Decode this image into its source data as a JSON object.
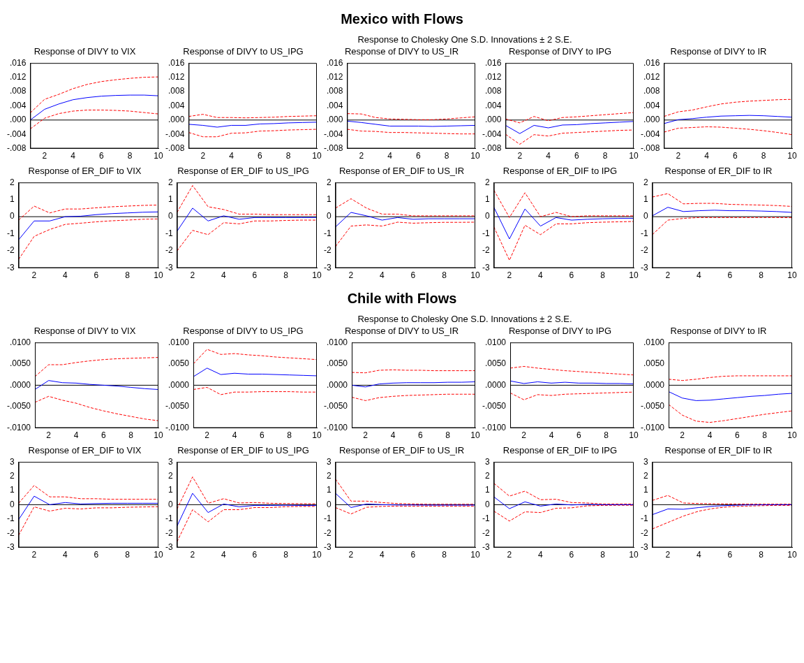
{
  "chart_data": [
    {
      "type": "line",
      "title": "Response of DIVY to VIX",
      "annotations": [
        "Mexico with Flows",
        "Response to Cholesky One S.D. Innovations ± 2 S.E."
      ],
      "x": [
        1,
        2,
        3,
        4,
        5,
        6,
        7,
        8,
        9,
        10
      ],
      "xlim": [
        1,
        10
      ],
      "xticks": [
        2,
        4,
        6,
        8,
        10
      ],
      "ylim": [
        -0.008,
        0.016
      ],
      "yticks": [
        {
          "value": -0.008,
          "label": "-.008"
        },
        {
          "value": -0.004,
          "label": "-.004"
        },
        {
          "value": 0,
          "label": ".000"
        },
        {
          "value": 0.004,
          "label": ".004"
        },
        {
          "value": 0.008,
          "label": ".008"
        },
        {
          "value": 0.012,
          "label": ".012"
        },
        {
          "value": 0.016,
          "label": ".016"
        }
      ],
      "ref_lines": [
        {
          "axis": "y",
          "value": 0,
          "color": "#000000"
        }
      ],
      "series": [
        {
          "color": "#0000ff",
          "line_style": "solid",
          "values": [
            0,
            0.003,
            0.0045,
            0.0057,
            0.0063,
            0.0067,
            0.0069,
            0.007,
            0.007,
            0.0068
          ]
        },
        {
          "color": "#ff0000",
          "line_style": "dashed",
          "values": [
            0.002,
            0.0058,
            0.0072,
            0.0088,
            0.01,
            0.0108,
            0.0113,
            0.0117,
            0.012,
            0.0121
          ]
        },
        {
          "color": "#ff0000",
          "line_style": "dashed",
          "values": [
            -0.0025,
            0.0005,
            0.0018,
            0.0025,
            0.0028,
            0.0028,
            0.0027,
            0.0025,
            0.0021,
            0.0017
          ]
        }
      ]
    },
    {
      "type": "line",
      "title": "Response of DIVY to US_IPG",
      "x": [
        1,
        2,
        3,
        4,
        5,
        6,
        7,
        8,
        9,
        10
      ],
      "xlim": [
        1,
        10
      ],
      "xticks": [
        2,
        4,
        6,
        8,
        10
      ],
      "ylim": [
        -0.008,
        0.016
      ],
      "yticks": [
        {
          "value": -0.008,
          "label": "-.008"
        },
        {
          "value": -0.004,
          "label": "-.004"
        },
        {
          "value": 0,
          "label": ".000"
        },
        {
          "value": 0.004,
          "label": ".004"
        },
        {
          "value": 0.008,
          "label": ".008"
        },
        {
          "value": 0.012,
          "label": ".012"
        },
        {
          "value": 0.016,
          "label": ".016"
        }
      ],
      "ref_lines": [
        {
          "axis": "y",
          "value": 0,
          "color": "#000000"
        }
      ],
      "series": [
        {
          "color": "#0000ff",
          "line_style": "solid",
          "values": [
            -0.0012,
            -0.0015,
            -0.002,
            -0.0015,
            -0.0015,
            -0.0011,
            -0.001,
            -0.0008,
            -0.0007,
            -0.0006
          ]
        },
        {
          "color": "#ff0000",
          "line_style": "dashed",
          "values": [
            0.001,
            0.0016,
            0.0007,
            0.0007,
            0.0006,
            0.0007,
            0.0008,
            0.001,
            0.0011,
            0.0012
          ]
        },
        {
          "color": "#ff0000",
          "line_style": "dashed",
          "values": [
            -0.0035,
            -0.0047,
            -0.0047,
            -0.0037,
            -0.0036,
            -0.0031,
            -0.003,
            -0.0028,
            -0.0027,
            -0.0026
          ]
        }
      ]
    },
    {
      "type": "line",
      "title": "Response of DIVY to US_IR",
      "x": [
        1,
        2,
        3,
        4,
        5,
        6,
        7,
        8,
        9,
        10
      ],
      "xlim": [
        1,
        10
      ],
      "xticks": [
        2,
        4,
        6,
        8,
        10
      ],
      "ylim": [
        -0.008,
        0.016
      ],
      "yticks": [
        {
          "value": -0.008,
          "label": "-.008"
        },
        {
          "value": -0.004,
          "label": "-.004"
        },
        {
          "value": 0,
          "label": ".000"
        },
        {
          "value": 0.004,
          "label": ".004"
        },
        {
          "value": 0.008,
          "label": ".008"
        },
        {
          "value": 0.012,
          "label": ".012"
        },
        {
          "value": 0.016,
          "label": ".016"
        }
      ],
      "ref_lines": [
        {
          "axis": "y",
          "value": 0,
          "color": "#000000"
        }
      ],
      "series": [
        {
          "color": "#0000ff",
          "line_style": "solid",
          "values": [
            -0.0003,
            -0.0007,
            -0.0012,
            -0.0017,
            -0.0017,
            -0.0017,
            -0.0018,
            -0.0017,
            -0.0016,
            -0.0015
          ]
        },
        {
          "color": "#ff0000",
          "line_style": "dashed",
          "values": [
            0.0018,
            0.0017,
            0.0007,
            0.0003,
            0.0002,
            0.0001,
            0.0001,
            0.0003,
            0.0006,
            0.0009
          ]
        },
        {
          "color": "#ff0000",
          "line_style": "dashed",
          "values": [
            -0.0026,
            -0.0031,
            -0.0032,
            -0.0035,
            -0.0035,
            -0.0036,
            -0.0037,
            -0.0038,
            -0.0039,
            -0.0039
          ]
        }
      ]
    },
    {
      "type": "line",
      "title": "Response of DIVY to IPG",
      "x": [
        1,
        2,
        3,
        4,
        5,
        6,
        7,
        8,
        9,
        10
      ],
      "xlim": [
        1,
        10
      ],
      "xticks": [
        2,
        4,
        6,
        8,
        10
      ],
      "ylim": [
        -0.008,
        0.016
      ],
      "yticks": [
        {
          "value": -0.008,
          "label": "-.008"
        },
        {
          "value": -0.004,
          "label": "-.004"
        },
        {
          "value": 0,
          "label": ".000"
        },
        {
          "value": 0.004,
          "label": ".004"
        },
        {
          "value": 0.008,
          "label": ".008"
        },
        {
          "value": 0.012,
          "label": ".012"
        },
        {
          "value": 0.016,
          "label": ".016"
        }
      ],
      "ref_lines": [
        {
          "axis": "y",
          "value": 0,
          "color": "#000000"
        }
      ],
      "series": [
        {
          "color": "#0000ff",
          "line_style": "solid",
          "values": [
            -0.0015,
            -0.0038,
            -0.0015,
            -0.0022,
            -0.0014,
            -0.0013,
            -0.001,
            -0.0008,
            -0.0006,
            -0.0004
          ]
        },
        {
          "color": "#ff0000",
          "line_style": "dashed",
          "values": [
            0.0003,
            -0.0008,
            0.001,
            -0.0002,
            0.0007,
            0.0009,
            0.0012,
            0.0015,
            0.0018,
            0.0021
          ]
        },
        {
          "color": "#ff0000",
          "line_style": "dashed",
          "values": [
            -0.004,
            -0.0068,
            -0.0041,
            -0.0045,
            -0.0037,
            -0.0035,
            -0.0033,
            -0.0031,
            -0.0029,
            -0.0028
          ]
        }
      ]
    },
    {
      "type": "line",
      "title": "Response of DIVY to IR",
      "x": [
        1,
        2,
        3,
        4,
        5,
        6,
        7,
        8,
        9,
        10
      ],
      "xlim": [
        1,
        10
      ],
      "xticks": [
        2,
        4,
        6,
        8,
        10
      ],
      "ylim": [
        -0.008,
        0.016
      ],
      "yticks": [
        {
          "value": -0.008,
          "label": "-.008"
        },
        {
          "value": -0.004,
          "label": "-.004"
        },
        {
          "value": 0,
          "label": ".000"
        },
        {
          "value": 0.004,
          "label": ".004"
        },
        {
          "value": 0.008,
          "label": ".008"
        },
        {
          "value": 0.012,
          "label": ".012"
        },
        {
          "value": 0.016,
          "label": ".016"
        }
      ],
      "ref_lines": [
        {
          "axis": "y",
          "value": 0,
          "color": "#000000"
        }
      ],
      "series": [
        {
          "color": "#0000ff",
          "line_style": "solid",
          "values": [
            -0.001,
            0.0001,
            0.0004,
            0.0008,
            0.0011,
            0.0012,
            0.0013,
            0.0012,
            0.001,
            0.0008
          ]
        },
        {
          "color": "#ff0000",
          "line_style": "dashed",
          "values": [
            0.001,
            0.0023,
            0.0028,
            0.0037,
            0.0045,
            0.005,
            0.0053,
            0.0055,
            0.0057,
            0.0058
          ]
        },
        {
          "color": "#ff0000",
          "line_style": "dashed",
          "values": [
            -0.0034,
            -0.0023,
            -0.0021,
            -0.0019,
            -0.002,
            -0.0023,
            -0.0026,
            -0.003,
            -0.0035,
            -0.0041
          ]
        }
      ]
    },
    {
      "type": "line",
      "title": "Response of ER_DIF to VIX",
      "x": [
        1,
        2,
        3,
        4,
        5,
        6,
        7,
        8,
        9,
        10
      ],
      "xlim": [
        1,
        10
      ],
      "xticks": [
        2,
        4,
        6,
        8,
        10
      ],
      "ylim": [
        -3,
        2
      ],
      "yticks": [
        -3,
        -2,
        -1,
        0,
        1,
        2
      ],
      "ref_lines": [
        {
          "axis": "y",
          "value": 0,
          "color": "#000000"
        }
      ],
      "series": [
        {
          "color": "#0000ff",
          "line_style": "solid",
          "values": [
            -1.35,
            -0.25,
            -0.25,
            0,
            0.03,
            0.12,
            0.18,
            0.22,
            0.26,
            0.28
          ]
        },
        {
          "color": "#ff0000",
          "line_style": "dashed",
          "values": [
            -0.2,
            0.62,
            0.22,
            0.45,
            0.45,
            0.52,
            0.58,
            0.62,
            0.66,
            0.68
          ]
        },
        {
          "color": "#ff0000",
          "line_style": "dashed",
          "values": [
            -2.5,
            -1.15,
            -0.75,
            -0.45,
            -0.38,
            -0.3,
            -0.24,
            -0.2,
            -0.15,
            -0.13
          ]
        }
      ]
    },
    {
      "type": "line",
      "title": "Response of ER_DIF to US_IPG",
      "x": [
        1,
        2,
        3,
        4,
        5,
        6,
        7,
        8,
        9,
        10
      ],
      "xlim": [
        1,
        10
      ],
      "xticks": [
        2,
        4,
        6,
        8,
        10
      ],
      "ylim": [
        -3,
        2
      ],
      "yticks": [
        -3,
        -2,
        -1,
        0,
        1,
        2
      ],
      "ref_lines": [
        {
          "axis": "y",
          "value": 0,
          "color": "#000000"
        }
      ],
      "series": [
        {
          "color": "#0000ff",
          "line_style": "solid",
          "values": [
            -0.85,
            0.5,
            -0.25,
            0.05,
            -0.15,
            -0.05,
            -0.05,
            -0.05,
            -0.05,
            -0.05
          ]
        },
        {
          "color": "#ff0000",
          "line_style": "dashed",
          "values": [
            0.25,
            1.82,
            0.58,
            0.42,
            0.15,
            0.15,
            0.12,
            0.12,
            0.12,
            0.12
          ]
        },
        {
          "color": "#ff0000",
          "line_style": "dashed",
          "values": [
            -2,
            -0.8,
            -1.05,
            -0.35,
            -0.42,
            -0.25,
            -0.25,
            -0.22,
            -0.2,
            -0.2
          ]
        }
      ]
    },
    {
      "type": "line",
      "title": "Response of ER_DIF to US_IR",
      "x": [
        1,
        2,
        3,
        4,
        5,
        6,
        7,
        8,
        9,
        10
      ],
      "xlim": [
        1,
        10
      ],
      "xticks": [
        2,
        4,
        6,
        8,
        10
      ],
      "ylim": [
        -3,
        2
      ],
      "yticks": [
        -3,
        -2,
        -1,
        0,
        1,
        2
      ],
      "ref_lines": [
        {
          "axis": "y",
          "value": 0,
          "color": "#000000"
        }
      ],
      "series": [
        {
          "color": "#0000ff",
          "line_style": "solid",
          "values": [
            -0.6,
            0.25,
            0.05,
            -0.2,
            -0.05,
            -0.15,
            -0.12,
            -0.12,
            -0.12,
            -0.12
          ]
        },
        {
          "color": "#ff0000",
          "line_style": "dashed",
          "values": [
            0.5,
            1.05,
            0.5,
            0.15,
            0.15,
            0.05,
            0.05,
            0.05,
            0.05,
            0.05
          ]
        },
        {
          "color": "#ff0000",
          "line_style": "dashed",
          "values": [
            -1.75,
            -0.55,
            -0.48,
            -0.55,
            -0.32,
            -0.38,
            -0.35,
            -0.33,
            -0.33,
            -0.32
          ]
        }
      ]
    },
    {
      "type": "line",
      "title": "Response of ER_DIF to IPG",
      "x": [
        1,
        2,
        3,
        4,
        5,
        6,
        7,
        8,
        9,
        10
      ],
      "xlim": [
        1,
        10
      ],
      "xticks": [
        2,
        4,
        6,
        8,
        10
      ],
      "ylim": [
        -3,
        2
      ],
      "yticks": [
        -3,
        -2,
        -1,
        0,
        1,
        2
      ],
      "ref_lines": [
        {
          "axis": "y",
          "value": 0,
          "color": "#000000"
        }
      ],
      "series": [
        {
          "color": "#0000ff",
          "line_style": "solid",
          "values": [
            0.55,
            -1.3,
            0.45,
            -0.55,
            -0.05,
            -0.2,
            -0.15,
            -0.12,
            -0.1,
            -0.1
          ]
        },
        {
          "color": "#ff0000",
          "line_style": "dashed",
          "values": [
            1.55,
            -0.05,
            1.4,
            0,
            0.25,
            0,
            0.05,
            0.05,
            0.05,
            0.05
          ]
        },
        {
          "color": "#ff0000",
          "line_style": "dashed",
          "values": [
            -0.6,
            -2.55,
            -0.5,
            -1.05,
            -0.42,
            -0.42,
            -0.35,
            -0.32,
            -0.3,
            -0.28
          ]
        }
      ]
    },
    {
      "type": "line",
      "title": "Response of ER_DIF to IR",
      "x": [
        1,
        2,
        3,
        4,
        5,
        6,
        7,
        8,
        9,
        10
      ],
      "xlim": [
        1,
        10
      ],
      "xticks": [
        2,
        4,
        6,
        8,
        10
      ],
      "ylim": [
        -3,
        2
      ],
      "yticks": [
        -3,
        -2,
        -1,
        0,
        1,
        2
      ],
      "ref_lines": [
        {
          "axis": "y",
          "value": 0,
          "color": "#000000"
        }
      ],
      "series": [
        {
          "color": "#0000ff",
          "line_style": "solid",
          "values": [
            0.05,
            0.55,
            0.3,
            0.35,
            0.38,
            0.35,
            0.35,
            0.33,
            0.3,
            0.25
          ]
        },
        {
          "color": "#ff0000",
          "line_style": "dashed",
          "values": [
            1.15,
            1.35,
            0.75,
            0.78,
            0.78,
            0.72,
            0.7,
            0.68,
            0.65,
            0.6
          ]
        },
        {
          "color": "#ff0000",
          "line_style": "dashed",
          "values": [
            -1.05,
            -0.2,
            -0.1,
            -0.05,
            -0.05,
            -0.05,
            -0.05,
            -0.05,
            -0.05,
            -0.06
          ]
        }
      ]
    },
    {
      "type": "line",
      "title": "Response of DIVY to VIX",
      "annotations": [
        "Chile with Flows",
        "Response to Cholesky One S.D. Innovations ± 2 S.E."
      ],
      "x": [
        1,
        2,
        3,
        4,
        5,
        6,
        7,
        8,
        9,
        10
      ],
      "xlim": [
        1,
        10
      ],
      "xticks": [
        2,
        4,
        6,
        8,
        10
      ],
      "ylim": [
        -0.01,
        0.01
      ],
      "yticks": [
        {
          "value": -0.01,
          "label": "-.0100"
        },
        {
          "value": -0.005,
          "label": "-.0050"
        },
        {
          "value": 0,
          "label": ".0000"
        },
        {
          "value": 0.005,
          "label": ".0050"
        },
        {
          "value": 0.01,
          "label": ".0100"
        }
      ],
      "ref_lines": [
        {
          "axis": "y",
          "value": 0,
          "color": "#000000"
        }
      ],
      "series": [
        {
          "color": "#0000ff",
          "line_style": "solid",
          "values": [
            -0.001,
            0.0011,
            0.0006,
            0.0005,
            0.0002,
            0,
            -0.0002,
            -0.0005,
            -0.0008,
            -0.001
          ]
        },
        {
          "color": "#ff0000",
          "line_style": "dashed",
          "values": [
            0.002,
            0.0048,
            0.0048,
            0.0053,
            0.0057,
            0.006,
            0.0062,
            0.0063,
            0.0064,
            0.0065
          ]
        },
        {
          "color": "#ff0000",
          "line_style": "dashed",
          "values": [
            -0.004,
            -0.0026,
            -0.0035,
            -0.0042,
            -0.0052,
            -0.006,
            -0.0067,
            -0.0073,
            -0.0079,
            -0.0083
          ]
        }
      ]
    },
    {
      "type": "line",
      "title": "Response of DIVY to US_IPG",
      "x": [
        1,
        2,
        3,
        4,
        5,
        6,
        7,
        8,
        9,
        10
      ],
      "xlim": [
        1,
        10
      ],
      "xticks": [
        2,
        4,
        6,
        8,
        10
      ],
      "ylim": [
        -0.01,
        0.01
      ],
      "yticks": [
        {
          "value": -0.01,
          "label": "-.0100"
        },
        {
          "value": -0.005,
          "label": "-.0050"
        },
        {
          "value": 0,
          "label": ".0000"
        },
        {
          "value": 0.005,
          "label": ".0050"
        },
        {
          "value": 0.01,
          "label": ".0100"
        }
      ],
      "ref_lines": [
        {
          "axis": "y",
          "value": 0,
          "color": "#000000"
        }
      ],
      "series": [
        {
          "color": "#0000ff",
          "line_style": "solid",
          "values": [
            0.002,
            0.004,
            0.0025,
            0.0028,
            0.0026,
            0.0026,
            0.0025,
            0.0024,
            0.0023,
            0.0022
          ]
        },
        {
          "color": "#ff0000",
          "line_style": "dashed",
          "values": [
            0.005,
            0.0084,
            0.0072,
            0.0074,
            0.0071,
            0.0069,
            0.0066,
            0.0064,
            0.0062,
            0.006
          ]
        },
        {
          "color": "#ff0000",
          "line_style": "dashed",
          "values": [
            -0.001,
            -0.0005,
            -0.0022,
            -0.0016,
            -0.0016,
            -0.0015,
            -0.0015,
            -0.0015,
            -0.0016,
            -0.0016
          ]
        }
      ]
    },
    {
      "type": "line",
      "title": "Response of DIVY to US_IR",
      "x": [
        1,
        2,
        3,
        4,
        5,
        6,
        7,
        8,
        9,
        10
      ],
      "xlim": [
        1,
        10
      ],
      "xticks": [
        2,
        4,
        6,
        8,
        10
      ],
      "ylim": [
        -0.01,
        0.01
      ],
      "yticks": [
        {
          "value": -0.01,
          "label": "-.0100"
        },
        {
          "value": -0.005,
          "label": "-.0050"
        },
        {
          "value": 0,
          "label": ".0000"
        },
        {
          "value": 0.005,
          "label": ".0050"
        },
        {
          "value": 0.01,
          "label": ".0100"
        }
      ],
      "ref_lines": [
        {
          "axis": "y",
          "value": 0,
          "color": "#000000"
        }
      ],
      "series": [
        {
          "color": "#0000ff",
          "line_style": "solid",
          "values": [
            0,
            -0.0004,
            0.0003,
            0.0005,
            0.0006,
            0.0006,
            0.0006,
            0.0007,
            0.0007,
            0.0008
          ]
        },
        {
          "color": "#ff0000",
          "line_style": "dashed",
          "values": [
            0.003,
            0.0029,
            0.0035,
            0.0036,
            0.0035,
            0.0035,
            0.0034,
            0.0034,
            0.0034,
            0.0034
          ]
        },
        {
          "color": "#ff0000",
          "line_style": "dashed",
          "values": [
            -0.0028,
            -0.0036,
            -0.0029,
            -0.0026,
            -0.0024,
            -0.0023,
            -0.0022,
            -0.0021,
            -0.0021,
            -0.0021
          ]
        }
      ]
    },
    {
      "type": "line",
      "title": "Response of DIVY to IPG",
      "x": [
        1,
        2,
        3,
        4,
        5,
        6,
        7,
        8,
        9,
        10
      ],
      "xlim": [
        1,
        10
      ],
      "xticks": [
        2,
        4,
        6,
        8,
        10
      ],
      "ylim": [
        -0.01,
        0.01
      ],
      "yticks": [
        {
          "value": -0.01,
          "label": "-.0100"
        },
        {
          "value": -0.005,
          "label": "-.0050"
        },
        {
          "value": 0,
          "label": ".0000"
        },
        {
          "value": 0.005,
          "label": ".0050"
        },
        {
          "value": 0.01,
          "label": ".0100"
        }
      ],
      "ref_lines": [
        {
          "axis": "y",
          "value": 0,
          "color": "#000000"
        }
      ],
      "series": [
        {
          "color": "#0000ff",
          "line_style": "solid",
          "values": [
            0.001,
            0.0004,
            0.0008,
            0.0005,
            0.0007,
            0.0005,
            0.0005,
            0.0004,
            0.0004,
            0.0003
          ]
        },
        {
          "color": "#ff0000",
          "line_style": "dashed",
          "values": [
            0.004,
            0.0044,
            0.004,
            0.0037,
            0.0034,
            0.0032,
            0.003,
            0.0028,
            0.0026,
            0.0024
          ]
        },
        {
          "color": "#ff0000",
          "line_style": "dashed",
          "values": [
            -0.0018,
            -0.0034,
            -0.0022,
            -0.0024,
            -0.0021,
            -0.002,
            -0.0019,
            -0.0018,
            -0.0017,
            -0.0016
          ]
        }
      ]
    },
    {
      "type": "line",
      "title": "Response of DIVY to IR",
      "x": [
        1,
        2,
        3,
        4,
        5,
        6,
        7,
        8,
        9,
        10
      ],
      "xlim": [
        1,
        10
      ],
      "xticks": [
        2,
        4,
        6,
        8,
        10
      ],
      "ylim": [
        -0.01,
        0.01
      ],
      "yticks": [
        {
          "value": -0.01,
          "label": "-.0100"
        },
        {
          "value": -0.005,
          "label": "-.0050"
        },
        {
          "value": 0,
          "label": ".0000"
        },
        {
          "value": 0.005,
          "label": ".0050"
        },
        {
          "value": 0.01,
          "label": ".0100"
        }
      ],
      "ref_lines": [
        {
          "axis": "y",
          "value": 0,
          "color": "#000000"
        }
      ],
      "series": [
        {
          "color": "#0000ff",
          "line_style": "solid",
          "values": [
            -0.0015,
            -0.003,
            -0.0036,
            -0.0035,
            -0.0032,
            -0.0029,
            -0.0026,
            -0.0024,
            -0.0021,
            -0.0019
          ]
        },
        {
          "color": "#ff0000",
          "line_style": "dashed",
          "values": [
            0.0014,
            0.0011,
            0.0014,
            0.0018,
            0.0021,
            0.0022,
            0.0022,
            0.0022,
            0.0022,
            0.0022
          ]
        },
        {
          "color": "#ff0000",
          "line_style": "dashed",
          "values": [
            -0.0045,
            -0.007,
            -0.0084,
            -0.0087,
            -0.0083,
            -0.0078,
            -0.0073,
            -0.0068,
            -0.0064,
            -0.006
          ]
        }
      ]
    },
    {
      "type": "line",
      "title": "Response of ER_DIF to VIX",
      "x": [
        1,
        2,
        3,
        4,
        5,
        6,
        7,
        8,
        9,
        10
      ],
      "xlim": [
        1,
        10
      ],
      "xticks": [
        2,
        4,
        6,
        8,
        10
      ],
      "ylim": [
        -3,
        3
      ],
      "yticks": [
        -3,
        -2,
        -1,
        0,
        1,
        2,
        3
      ],
      "ref_lines": [
        {
          "axis": "y",
          "value": 0,
          "color": "#000000"
        }
      ],
      "series": [
        {
          "color": "#0000ff",
          "line_style": "solid",
          "values": [
            -1.05,
            0.6,
            0,
            0.15,
            0.05,
            0.08,
            0.1,
            0.1,
            0.1,
            0.1
          ]
        },
        {
          "color": "#ff0000",
          "line_style": "dashed",
          "values": [
            0.1,
            1.35,
            0.55,
            0.55,
            0.42,
            0.42,
            0.38,
            0.38,
            0.38,
            0.38
          ]
        },
        {
          "color": "#ff0000",
          "line_style": "dashed",
          "values": [
            -2.15,
            -0.15,
            -0.45,
            -0.25,
            -0.3,
            -0.22,
            -0.22,
            -0.18,
            -0.16,
            -0.14
          ]
        }
      ]
    },
    {
      "type": "line",
      "title": "Response of ER_DIF to US_IPG",
      "x": [
        1,
        2,
        3,
        4,
        5,
        6,
        7,
        8,
        9,
        10
      ],
      "xlim": [
        1,
        10
      ],
      "xticks": [
        2,
        4,
        6,
        8,
        10
      ],
      "ylim": [
        -3,
        3
      ],
      "yticks": [
        -3,
        -2,
        -1,
        0,
        1,
        2,
        3
      ],
      "ref_lines": [
        {
          "axis": "y",
          "value": 0,
          "color": "#000000"
        }
      ],
      "series": [
        {
          "color": "#0000ff",
          "line_style": "solid",
          "values": [
            -1.5,
            0.8,
            -0.55,
            0.05,
            -0.15,
            -0.05,
            -0.05,
            -0.04,
            -0.05,
            -0.05
          ]
        },
        {
          "color": "#ff0000",
          "line_style": "dashed",
          "values": [
            -0.3,
            1.95,
            0.1,
            0.42,
            0.12,
            0.15,
            0.1,
            0.08,
            0.07,
            0.06
          ]
        },
        {
          "color": "#ff0000",
          "line_style": "dashed",
          "values": [
            -2.6,
            -0.35,
            -1.2,
            -0.35,
            -0.35,
            -0.2,
            -0.2,
            -0.14,
            -0.12,
            -0.12
          ]
        }
      ]
    },
    {
      "type": "line",
      "title": "Response of ER_DIF to US_IR",
      "x": [
        1,
        2,
        3,
        4,
        5,
        6,
        7,
        8,
        9,
        10
      ],
      "xlim": [
        1,
        10
      ],
      "xticks": [
        2,
        4,
        6,
        8,
        10
      ],
      "ylim": [
        -3,
        3
      ],
      "yticks": [
        -3,
        -2,
        -1,
        0,
        1,
        2,
        3
      ],
      "ref_lines": [
        {
          "axis": "y",
          "value": 0,
          "color": "#000000"
        }
      ],
      "series": [
        {
          "color": "#0000ff",
          "line_style": "solid",
          "values": [
            0.8,
            -0.2,
            0.05,
            0,
            -0.02,
            -0.02,
            -0.03,
            -0.03,
            -0.03,
            -0.03
          ]
        },
        {
          "color": "#ff0000",
          "line_style": "dashed",
          "values": [
            1.8,
            0.25,
            0.25,
            0.15,
            0.08,
            0.05,
            0.03,
            0.03,
            0.03,
            0.03
          ]
        },
        {
          "color": "#ff0000",
          "line_style": "dashed",
          "values": [
            -0.2,
            -0.65,
            -0.18,
            -0.12,
            -0.1,
            -0.1,
            -0.1,
            -0.1,
            -0.1,
            -0.1
          ]
        }
      ]
    },
    {
      "type": "line",
      "title": "Response of ER_DIF to IPG",
      "x": [
        1,
        2,
        3,
        4,
        5,
        6,
        7,
        8,
        9,
        10
      ],
      "xlim": [
        1,
        10
      ],
      "xticks": [
        2,
        4,
        6,
        8,
        10
      ],
      "ylim": [
        -3,
        3
      ],
      "yticks": [
        -3,
        -2,
        -1,
        0,
        1,
        2,
        3
      ],
      "ref_lines": [
        {
          "axis": "y",
          "value": 0,
          "color": "#000000"
        }
      ],
      "series": [
        {
          "color": "#0000ff",
          "line_style": "solid",
          "values": [
            0.55,
            -0.28,
            0.2,
            -0.1,
            0.05,
            -0.02,
            0.02,
            0,
            0,
            0
          ]
        },
        {
          "color": "#ff0000",
          "line_style": "dashed",
          "values": [
            1.5,
            0.6,
            0.95,
            0.35,
            0.38,
            0.15,
            0.12,
            0.05,
            0.05,
            0.05
          ]
        },
        {
          "color": "#ff0000",
          "line_style": "dashed",
          "values": [
            -0.45,
            -1.15,
            -0.5,
            -0.55,
            -0.25,
            -0.22,
            -0.08,
            -0.05,
            -0.04,
            -0.04
          ]
        }
      ]
    },
    {
      "type": "line",
      "title": "Response of ER_DIF to IR",
      "x": [
        1,
        2,
        3,
        4,
        5,
        6,
        7,
        8,
        9,
        10
      ],
      "xlim": [
        1,
        10
      ],
      "xticks": [
        2,
        4,
        6,
        8,
        10
      ],
      "ylim": [
        -3,
        3
      ],
      "yticks": [
        -3,
        -2,
        -1,
        0,
        1,
        2,
        3
      ],
      "ref_lines": [
        {
          "axis": "y",
          "value": 0,
          "color": "#000000"
        }
      ],
      "series": [
        {
          "color": "#0000ff",
          "line_style": "solid",
          "values": [
            -0.7,
            -0.3,
            -0.32,
            -0.2,
            -0.1,
            -0.05,
            -0.02,
            -0.01,
            0,
            0
          ]
        },
        {
          "color": "#ff0000",
          "line_style": "dashed",
          "values": [
            0.3,
            0.65,
            0.12,
            0.08,
            0.06,
            0.05,
            0.04,
            0.04,
            0.04,
            0.04
          ]
        },
        {
          "color": "#ff0000",
          "line_style": "dashed",
          "values": [
            -1.7,
            -1.25,
            -0.8,
            -0.45,
            -0.25,
            -0.14,
            -0.1,
            -0.07,
            -0.05,
            -0.05
          ]
        }
      ]
    }
  ]
}
